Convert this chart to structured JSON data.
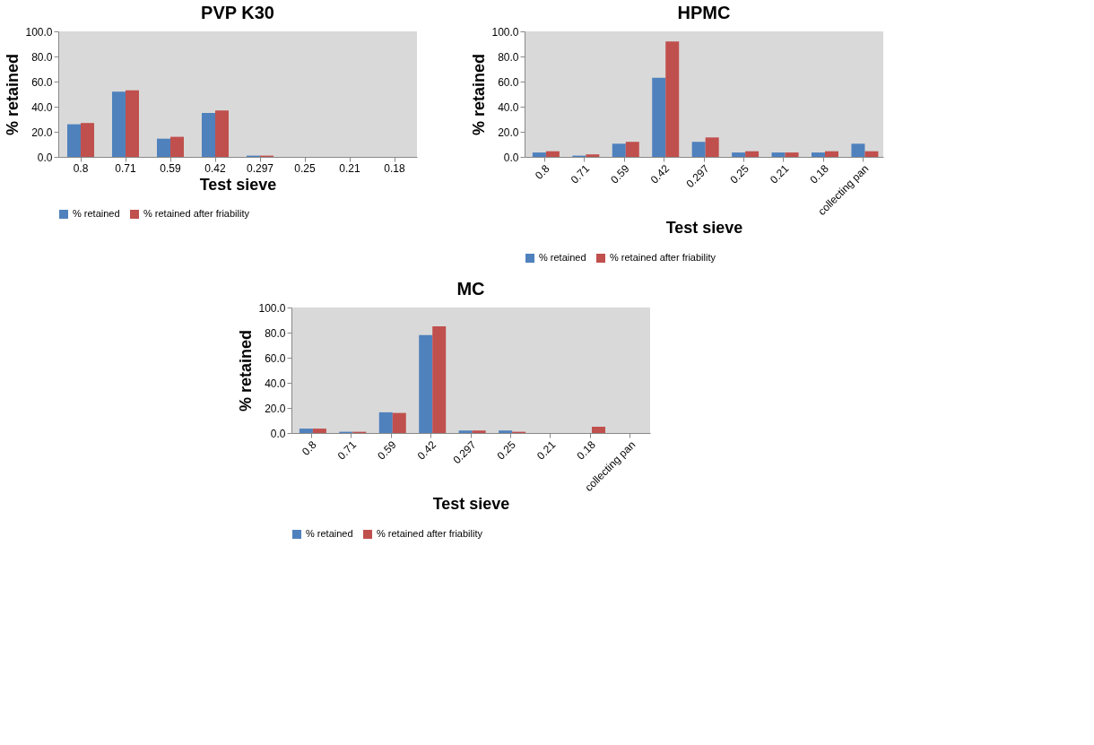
{
  "chart_data": [
    {
      "type": "bar",
      "title": "PVP K30",
      "xlabel": "Test sieve",
      "ylabel": "% retained",
      "categories": [
        "0.8",
        "0.71",
        "0.59",
        "0.42",
        "0.297",
        "0.25",
        "0.21",
        "0.18"
      ],
      "series": [
        {
          "name": "% retained",
          "color": "#4f81bd",
          "values": [
            26,
            52,
            14.5,
            35,
            1,
            0,
            0,
            0
          ]
        },
        {
          "name": "% retained after friability",
          "color": "#c0504d",
          "values": [
            27,
            53,
            16,
            37,
            1,
            0,
            0,
            0
          ]
        }
      ],
      "ylim": [
        0,
        100
      ],
      "yticks": [
        {
          "value": 0,
          "label": "0.0"
        },
        {
          "value": 20,
          "label": "20.0"
        },
        {
          "value": 40,
          "label": "40.0"
        },
        {
          "value": 60,
          "label": "60.0"
        },
        {
          "value": 80,
          "label": "80.0"
        },
        {
          "value": 100,
          "label": "100.0"
        }
      ],
      "grid": false,
      "legend": "bottom"
    },
    {
      "type": "bar",
      "title": "HPMC",
      "xlabel": "Test sieve",
      "ylabel": "% retained",
      "categories": [
        "0.8",
        "0.71",
        "0.59",
        "0.42",
        "0.297",
        "0.25",
        "0.21",
        "0.18",
        "collecting pan"
      ],
      "series": [
        {
          "name": "% retained",
          "color": "#4f81bd",
          "values": [
            3.5,
            1,
            10.5,
            63,
            12,
            3.5,
            3.5,
            3.5,
            10.5
          ]
        },
        {
          "name": "% retained after friability",
          "color": "#c0504d",
          "values": [
            4.5,
            2,
            12,
            92,
            15.5,
            4.5,
            3.5,
            4.5,
            4.5
          ]
        }
      ],
      "ylim": [
        0,
        100
      ],
      "yticks": [
        {
          "value": 0,
          "label": "0.0"
        },
        {
          "value": 20,
          "label": "20.0"
        },
        {
          "value": 40,
          "label": "40.0"
        },
        {
          "value": 60,
          "label": "60.0"
        },
        {
          "value": 80,
          "label": "80.0"
        },
        {
          "value": 100,
          "label": "100.0"
        }
      ],
      "grid": false,
      "legend": "bottom"
    },
    {
      "type": "bar",
      "title": "MC",
      "xlabel": "Test sieve",
      "ylabel": "% retained",
      "categories": [
        "0.8",
        "0.71",
        "0.59",
        "0.42",
        "0.297",
        "0.25",
        "0.21",
        "0.18",
        "collecting pan"
      ],
      "series": [
        {
          "name": "% retained",
          "color": "#4f81bd",
          "values": [
            3.5,
            1,
            16.5,
            78,
            2,
            2,
            0,
            0,
            0
          ]
        },
        {
          "name": "% retained after friability",
          "color": "#c0504d",
          "values": [
            3.5,
            1,
            16,
            85,
            2,
            1,
            0,
            5,
            0
          ]
        }
      ],
      "ylim": [
        0,
        100
      ],
      "yticks": [
        {
          "value": 0,
          "label": "0.0"
        },
        {
          "value": 20,
          "label": "20.0"
        },
        {
          "value": 40,
          "label": "40.0"
        },
        {
          "value": 60,
          "label": "60.0"
        },
        {
          "value": 80,
          "label": "80.0"
        },
        {
          "value": 100,
          "label": "100.0"
        }
      ],
      "grid": false,
      "legend": "bottom"
    }
  ]
}
